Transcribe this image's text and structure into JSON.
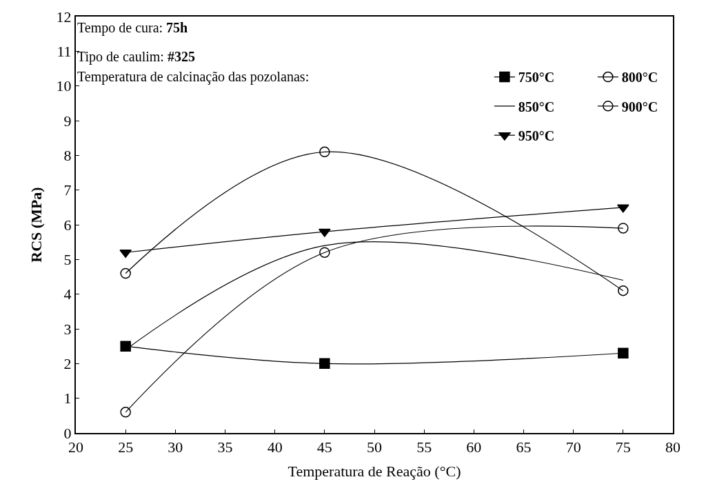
{
  "chart_data": {
    "type": "line",
    "xlabel": "Temperatura de Reação (°C)",
    "ylabel": "RCS (MPa)",
    "annotations": [
      "Tempo de cura: 75h",
      "Tipo de caulim: #325"
    ],
    "legend_title": "Temperatura de calcinação das pozolanas:",
    "legend": "top right",
    "line_style": "solid",
    "x": [
      25,
      45,
      75
    ],
    "xlim": [
      20,
      80
    ],
    "xticks": [
      20,
      25,
      30,
      35,
      40,
      45,
      50,
      55,
      60,
      65,
      70,
      75,
      80
    ],
    "ylim": [
      0,
      12
    ],
    "yticks": [
      0,
      1,
      2,
      3,
      4,
      5,
      6,
      7,
      8,
      9,
      10,
      11,
      12
    ],
    "series": [
      {
        "name": "750°C",
        "color": "#000000",
        "marker": "square",
        "values": [
          2.5,
          2.0,
          2.3
        ]
      },
      {
        "name": "800°C",
        "color": "#000000",
        "marker": "circle",
        "values": [
          0.6,
          5.2,
          5.9
        ]
      },
      {
        "name": "850°C",
        "color": "#000000",
        "marker": "none",
        "values": [
          2.4,
          5.4,
          4.4
        ]
      },
      {
        "name": "900°C",
        "color": "#000000",
        "marker": "circle",
        "values": [
          4.6,
          8.1,
          4.1
        ]
      },
      {
        "name": "950°C",
        "color": "#000000",
        "marker": "triangle",
        "values": [
          5.2,
          5.8,
          6.5
        ]
      }
    ]
  }
}
